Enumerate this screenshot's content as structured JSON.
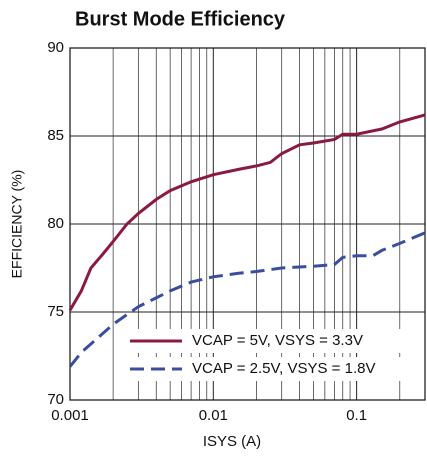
{
  "chart_data": {
    "type": "line",
    "title": "Burst Mode Efficiency",
    "xlabel": "ISYS (A)",
    "ylabel": "EFFICIENCY (%)",
    "xscale": "log",
    "grid": true,
    "legend": "lower right",
    "xlim": [
      0.001,
      0.3
    ],
    "ylim": [
      70,
      90
    ],
    "xticks": [
      0.001,
      0.01,
      0.1
    ],
    "xminor": [
      0.002,
      0.003,
      0.004,
      0.005,
      0.006,
      0.007,
      0.008,
      0.009,
      0.02,
      0.03,
      0.04,
      0.05,
      0.06,
      0.07,
      0.08,
      0.09,
      0.2
    ],
    "yticks": [
      70,
      75,
      80,
      85,
      90
    ],
    "series": [
      {
        "name": "VCAP = 5V, VSYS = 3.3V",
        "color": "#8b1a3c",
        "dash": "solid",
        "x": [
          0.001,
          0.0012,
          0.0014,
          0.0017,
          0.002,
          0.0025,
          0.003,
          0.004,
          0.005,
          0.007,
          0.01,
          0.015,
          0.02,
          0.025,
          0.03,
          0.04,
          0.05,
          0.07,
          0.08,
          0.1,
          0.15,
          0.2,
          0.3
        ],
        "values": [
          75.1,
          76.2,
          77.5,
          78.3,
          79.0,
          80.0,
          80.6,
          81.4,
          81.9,
          82.4,
          82.8,
          83.1,
          83.3,
          83.5,
          84.0,
          84.5,
          84.6,
          84.8,
          85.1,
          85.1,
          85.4,
          85.8,
          86.2
        ]
      },
      {
        "name": "VCAP = 2.5V, VSYS = 1.8V",
        "color": "#3a4ea0",
        "dash": "dashed",
        "x": [
          0.001,
          0.0012,
          0.0015,
          0.002,
          0.003,
          0.005,
          0.007,
          0.01,
          0.015,
          0.02,
          0.03,
          0.05,
          0.07,
          0.08,
          0.1,
          0.13,
          0.15,
          0.2,
          0.3
        ],
        "values": [
          71.9,
          72.7,
          73.4,
          74.3,
          75.3,
          76.2,
          76.7,
          77.0,
          77.2,
          77.3,
          77.5,
          77.6,
          77.7,
          78.1,
          78.2,
          78.2,
          78.5,
          78.9,
          79.5
        ]
      }
    ]
  }
}
